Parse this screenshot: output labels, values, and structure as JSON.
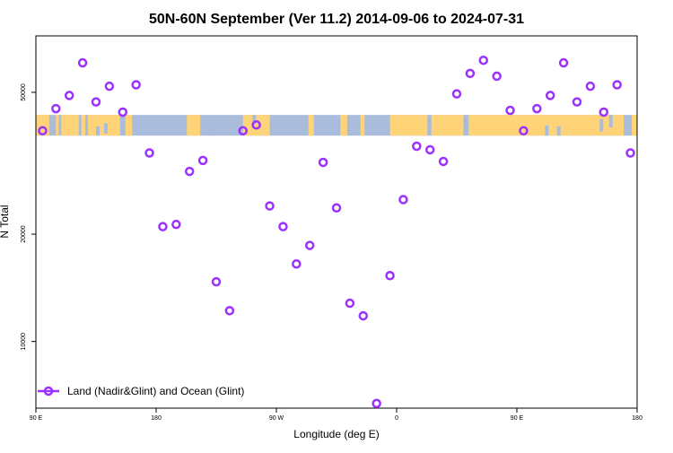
{
  "chart_data": {
    "type": "scatter",
    "title": "50N-60N September (Ver 11.2)   2014-09-06 to 2024-07-31",
    "xlabel": "Longitude (deg E)",
    "ylabel": "N Total",
    "y_scale": "log",
    "xlim": [
      90,
      540
    ],
    "ylim": [
      6500,
      72000
    ],
    "x_ticks": [
      {
        "value": 90,
        "label": "90 E"
      },
      {
        "value": 180,
        "label": "180"
      },
      {
        "value": 270,
        "label": "90 W"
      },
      {
        "value": 360,
        "label": "0"
      },
      {
        "value": 450,
        "label": "90 E"
      },
      {
        "value": 540,
        "label": "180"
      }
    ],
    "y_ticks": [
      {
        "value": 10000,
        "label": "10000"
      },
      {
        "value": 20000,
        "label": "20000"
      },
      {
        "value": 50000,
        "label": "50000"
      }
    ],
    "legend": {
      "position": "bottom-left",
      "label": "Land (Nadir&Glint) and Ocean (Glint)"
    },
    "colors": {
      "points": "#9b30ff",
      "map_ocean": "#a9bcdc",
      "map_land": "#ffd479"
    },
    "map_band": {
      "lat_range": "50N-60N",
      "y_range": [
        37800,
        43200
      ]
    },
    "series": [
      {
        "name": "Land (Nadir&Glint) and Ocean (Glint)",
        "x": [
          95,
          105,
          115,
          125,
          135,
          145,
          155,
          165,
          175,
          185,
          195,
          205,
          215,
          225,
          235,
          245,
          255,
          265,
          275,
          285,
          295,
          305,
          315,
          325,
          335,
          345,
          355,
          365,
          375,
          385,
          395,
          405,
          415,
          425,
          435,
          445,
          455,
          465,
          475,
          485,
          495,
          505,
          515,
          525,
          535
        ],
        "y": [
          39000,
          45000,
          49000,
          60500,
          47000,
          52000,
          44000,
          52500,
          33800,
          21000,
          21300,
          30000,
          32200,
          14700,
          12200,
          39000,
          40500,
          24000,
          21000,
          16500,
          18600,
          31800,
          23700,
          12800,
          11800,
          6700,
          15300,
          25000,
          35300,
          34500,
          32000,
          49500,
          56500,
          61500,
          55500,
          44500,
          39000,
          45000,
          49000,
          60500,
          47000,
          52000,
          44000,
          52500,
          33800
        ]
      }
    ]
  }
}
